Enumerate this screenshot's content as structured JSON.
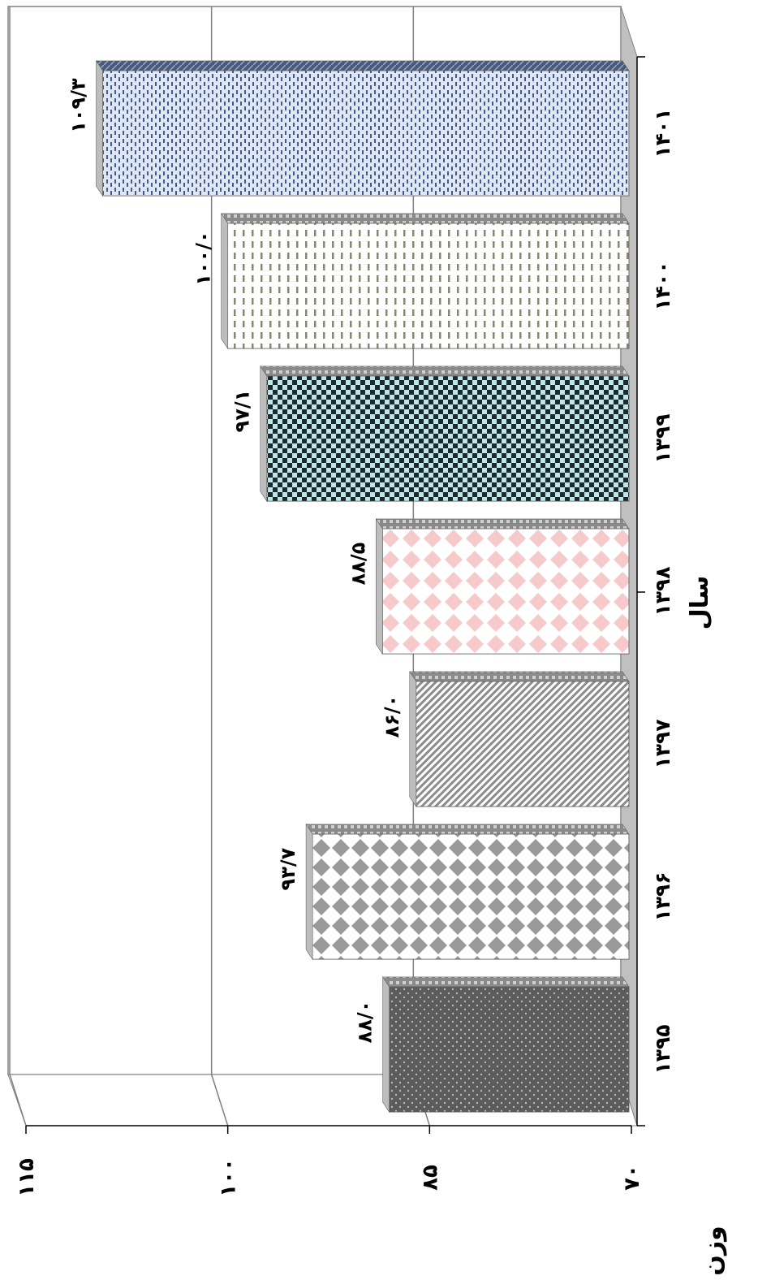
{
  "chart_data": {
    "type": "bar",
    "orientation": "rotated-90",
    "categories": [
      "۱۳۹۵",
      "۱۳۹۶",
      "۱۳۹۷",
      "۱۳۹۸",
      "۱۳۹۹",
      "۱۴۰۰",
      "۱۴۰۱"
    ],
    "values": [
      88.0,
      93.7,
      86.0,
      88.5,
      97.1,
      100.0,
      109.3
    ],
    "data_labels": [
      "۸۸/۰",
      "۹۳/۷",
      "۸۶/۰",
      "۸۸/۵",
      "۹۷/۱",
      "۱۰۰/۰",
      "۱۰۹/۳"
    ],
    "xlabel": "سال",
    "ylabel": "وزن",
    "ylim": [
      70,
      115
    ],
    "yticks": [
      70,
      85,
      100,
      115
    ],
    "ytick_labels": [
      "۷۰",
      "۸۵",
      "۱۰۰",
      "۱۱۵"
    ],
    "grid": true,
    "three_d": true,
    "bar_patterns": [
      "dots-dark",
      "diamonds-grey",
      "diagonal-stripes",
      "diamonds-pink",
      "checker-black",
      "dashes-olive",
      "dashes-blue"
    ],
    "bar_colors": [
      "#555555",
      "#9a9a9a",
      "#8c8c8c",
      "#f6caca",
      "#1b2a2a",
      "#8a8770",
      "#3a5a9a"
    ],
    "bar_bg_colors": [
      "#6b6b6b",
      "#ffffff",
      "#ffffff",
      "#ffffff",
      "#bfe6ea",
      "#ffffff",
      "#dfe6f4"
    ]
  }
}
